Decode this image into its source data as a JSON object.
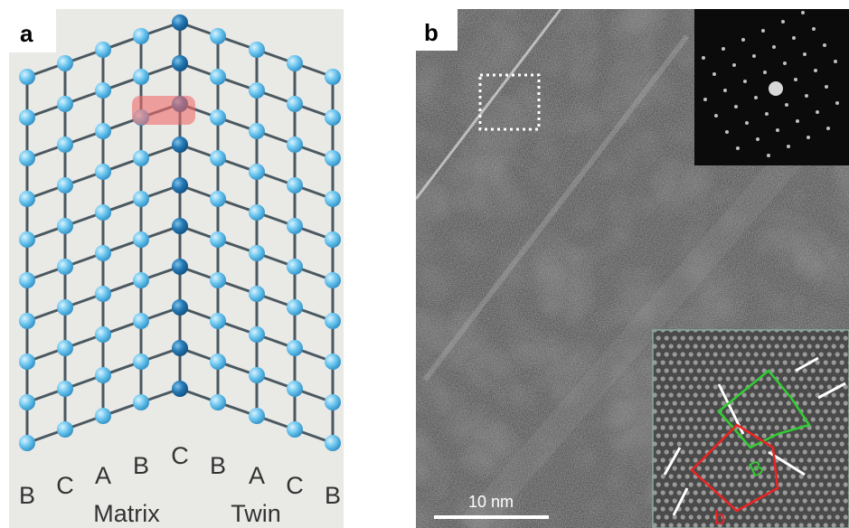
{
  "panels": [
    {
      "label": "a",
      "stacking": [
        "B",
        "C",
        "A",
        "B",
        "C",
        "B",
        "A",
        "C",
        "B"
      ],
      "regions": [
        "Matrix",
        "Twin"
      ]
    },
    {
      "label": "b",
      "scale_bar": "10 nm",
      "inset_labels": [
        "b",
        "B"
      ]
    }
  ]
}
